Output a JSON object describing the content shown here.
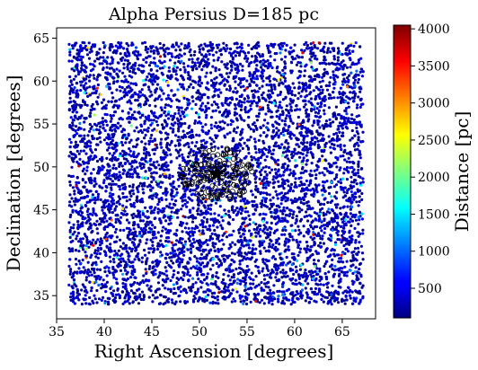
{
  "chart_data": {
    "type": "scatter",
    "title": "Alpha Persius  D=185 pc",
    "xlabel": "Right Ascension [degrees]",
    "ylabel": "Declination [degrees]",
    "xlim": [
      35.0,
      68.5
    ],
    "ylim": [
      32.3,
      66.2
    ],
    "xticks": [
      35,
      40,
      45,
      50,
      55,
      60,
      65
    ],
    "yticks": [
      35,
      40,
      45,
      50,
      55,
      60,
      65
    ],
    "grid": false,
    "colormap": "jet",
    "colorbar": {
      "label": "Distance [pc]",
      "range": [
        100,
        4050
      ],
      "ticks": [
        500,
        1000,
        1500,
        2000,
        2500,
        3000,
        3500,
        4000
      ]
    },
    "field_stars": {
      "ra_range": [
        36.3,
        67.2
      ],
      "dec_range": [
        34.0,
        64.5
      ],
      "approx_count": 6500,
      "dominant_distance_pc": 300
    },
    "cluster": {
      "marker": "black star",
      "ra": 51.8,
      "dec": 49.2,
      "members_ra_range": [
        48.0,
        55.5
      ],
      "members_dec_range": [
        46.0,
        52.5
      ]
    }
  }
}
